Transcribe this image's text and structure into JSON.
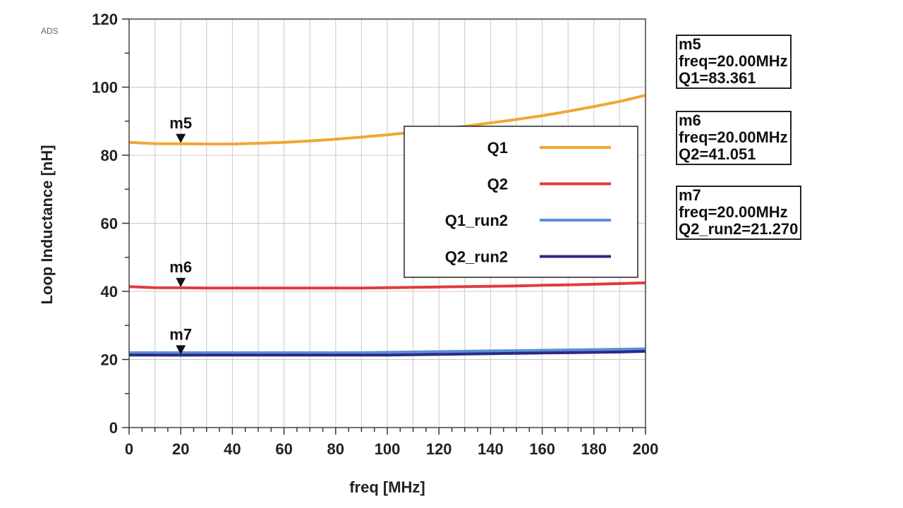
{
  "tool_tag": "ADS",
  "chart_data": {
    "type": "line",
    "title": "",
    "xlabel": "freq [MHz]",
    "ylabel": "Loop Inductance [nH]",
    "xlim": [
      0,
      200
    ],
    "ylim": [
      0,
      120
    ],
    "xticks": [
      "0",
      "20",
      "40",
      "60",
      "80",
      "100",
      "120",
      "140",
      "160",
      "180",
      "200"
    ],
    "yticks": [
      "0",
      "20",
      "40",
      "60",
      "80",
      "100",
      "120"
    ],
    "grid": true,
    "legend_position": "upper-right",
    "x": [
      0,
      10,
      20,
      30,
      40,
      50,
      60,
      70,
      80,
      90,
      100,
      110,
      120,
      130,
      140,
      150,
      160,
      170,
      180,
      190,
      200
    ],
    "series": [
      {
        "name": "Q1",
        "color": "#f0a733",
        "values": [
          83.8,
          83.4,
          83.36,
          83.3,
          83.3,
          83.5,
          83.8,
          84.2,
          84.7,
          85.3,
          86.0,
          86.8,
          87.6,
          88.5,
          89.5,
          90.5,
          91.6,
          92.9,
          94.3,
          95.8,
          97.6
        ]
      },
      {
        "name": "Q2",
        "color": "#e03c3c",
        "values": [
          41.4,
          41.1,
          41.05,
          41.0,
          41.0,
          41.0,
          41.0,
          41.0,
          41.0,
          41.0,
          41.1,
          41.2,
          41.3,
          41.4,
          41.5,
          41.6,
          41.8,
          41.9,
          42.1,
          42.3,
          42.5
        ]
      },
      {
        "name": "Q1_run2",
        "color": "#5b8fd6",
        "values": [
          22.0,
          22.0,
          22.0,
          22.0,
          22.0,
          22.0,
          22.0,
          22.0,
          22.0,
          22.0,
          22.1,
          22.2,
          22.3,
          22.4,
          22.5,
          22.6,
          22.7,
          22.8,
          22.9,
          23.0,
          23.1
        ]
      },
      {
        "name": "Q2_run2",
        "color": "#2b2a86",
        "values": [
          21.3,
          21.3,
          21.27,
          21.3,
          21.3,
          21.3,
          21.3,
          21.3,
          21.3,
          21.3,
          21.3,
          21.4,
          21.5,
          21.6,
          21.7,
          21.8,
          21.9,
          22.0,
          22.1,
          22.2,
          22.4
        ]
      }
    ],
    "markers": [
      {
        "name": "m5",
        "x": 20,
        "y": 83.361,
        "lines": [
          "m5",
          "freq=20.00MHz",
          "Q1=83.361"
        ]
      },
      {
        "name": "m6",
        "x": 20,
        "y": 41.051,
        "lines": [
          "m6",
          "freq=20.00MHz",
          "Q2=41.051"
        ]
      },
      {
        "name": "m7",
        "x": 20,
        "y": 21.27,
        "lines": [
          "m7",
          "freq=20.00MHz",
          "Q2_run2=21.270"
        ]
      }
    ]
  }
}
